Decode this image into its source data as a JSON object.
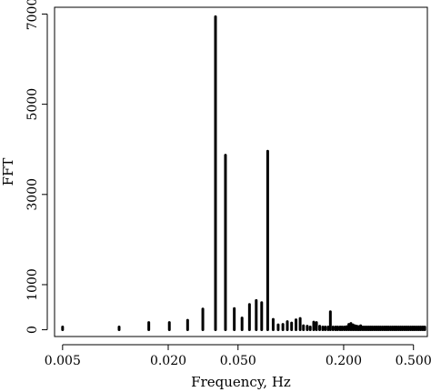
{
  "chart_data": {
    "type": "bar",
    "xlabel": "Frequency, Hz",
    "ylabel": "FFT",
    "x_scale": "log",
    "xlim": [
      0.0045,
      0.6
    ],
    "ylim": [
      -150,
      7150
    ],
    "x_ticks": [
      0.005,
      0.02,
      0.05,
      0.2,
      0.5
    ],
    "x_tick_labels": [
      "0.005",
      "0.020",
      "0.050",
      "0.200",
      "0.500"
    ],
    "y_ticks": [
      0,
      1000,
      3000,
      5000,
      7000
    ],
    "y_tick_labels": [
      "0",
      "1000",
      "3000",
      "5000",
      "7000"
    ],
    "grid": false,
    "legend": "none",
    "color": "#000000",
    "series": [
      {
        "x": [
          0.005,
          0.0105,
          0.0155,
          0.0203,
          0.0258,
          0.0315,
          0.0372,
          0.0424,
          0.0476,
          0.0527,
          0.0581,
          0.0635,
          0.0682,
          0.0738,
          0.0793,
          0.0847,
          0.0901,
          0.0955,
          0.101,
          0.107,
          0.113,
          0.118,
          0.124,
          0.129,
          0.135,
          0.14,
          0.146,
          0.152,
          0.157,
          0.163,
          0.168,
          0.174,
          0.18,
          0.185,
          0.191,
          0.196,
          0.202,
          0.208,
          0.214,
          0.22,
          0.226,
          0.232,
          0.238,
          0.244,
          0.25,
          0.257,
          0.264,
          0.271,
          0.278,
          0.285,
          0.292,
          0.3,
          0.308,
          0.316,
          0.324,
          0.333,
          0.342,
          0.351,
          0.36,
          0.37,
          0.38,
          0.39,
          0.4,
          0.411,
          0.422,
          0.433,
          0.445,
          0.457,
          0.469,
          0.482,
          0.495,
          0.508,
          0.522,
          0.536,
          0.55,
          0.565,
          0.58
        ],
        "values": [
          40,
          60,
          160,
          160,
          210,
          460,
          6940,
          3870,
          470,
          260,
          560,
          650,
          600,
          3960,
          230,
          110,
          120,
          180,
          150,
          220,
          250,
          90,
          80,
          60,
          170,
          160,
          80,
          60,
          50,
          40,
          400,
          60,
          50,
          40,
          60,
          50,
          45,
          70,
          120,
          140,
          110,
          90,
          80,
          70,
          90,
          60,
          50,
          45,
          40,
          40,
          35,
          35,
          30,
          30,
          30,
          30,
          28,
          28,
          28,
          25,
          25,
          25,
          25,
          25,
          25,
          25,
          25,
          25,
          25,
          25,
          25,
          25,
          25,
          25,
          25,
          25,
          25
        ]
      }
    ]
  }
}
